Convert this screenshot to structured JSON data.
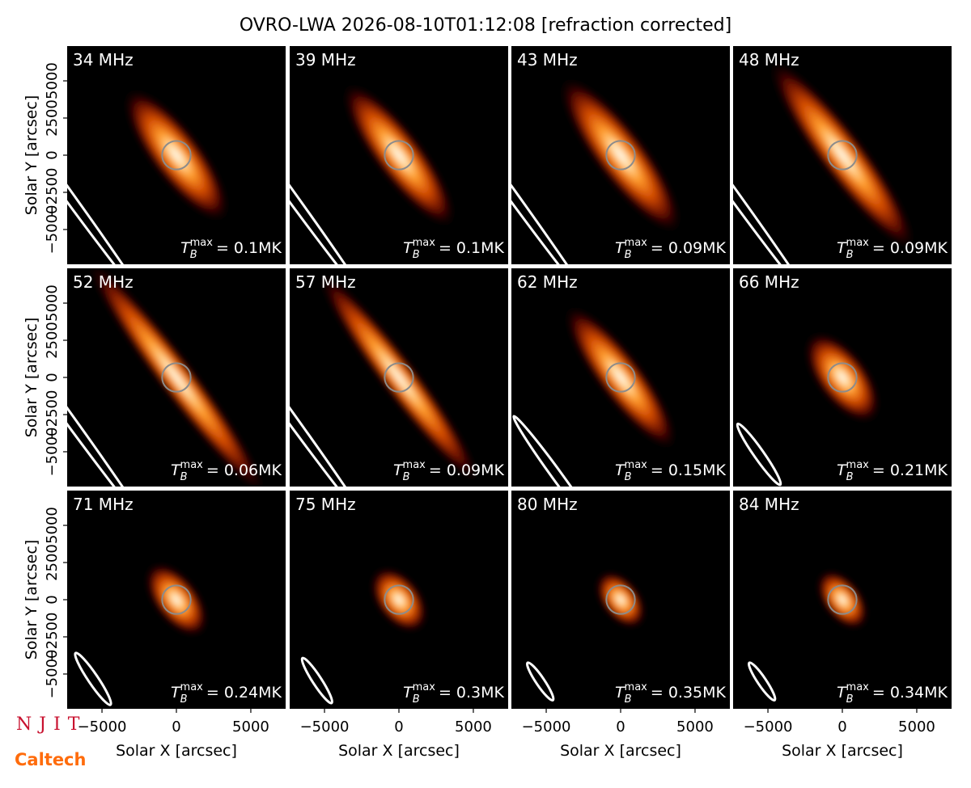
{
  "title": "OVRO-LWA 2026-08-10T01:12:08 [refraction corrected]",
  "logos": {
    "njit": "NJIT",
    "caltech": "Caltech"
  },
  "chart_data": [
    {
      "type": "image",
      "title": "34 MHz",
      "annotation": {
        "symbol": "T",
        "subscript": "B",
        "superscript": "max",
        "text": "= 0.1MK"
      },
      "xlim": [
        -7340,
        7340
      ],
      "ylim": [
        -7340,
        7340
      ],
      "disk_radius": 960,
      "yticks": [
        {
          "value": -5000,
          "label": "−5000"
        },
        {
          "value": -2500,
          "label": "−2500"
        },
        0,
        2500,
        5000
      ],
      "ylabel": "Solar Y [arcsec]",
      "source": {
        "x": 0,
        "y": 0,
        "major": 5500,
        "minor": 1700,
        "angle": -53
      },
      "beam": {
        "x": -9000,
        "y": -330,
        "major": 12000,
        "minor": 330,
        "angle": -54
      }
    },
    {
      "type": "image",
      "title": "39 MHz",
      "annotation": {
        "symbol": "T",
        "subscript": "B",
        "superscript": "max",
        "text": "= 0.1MK"
      },
      "xlim": [
        -7340,
        7340
      ],
      "ylim": [
        -7340,
        7340
      ],
      "disk_radius": 960,
      "source": {
        "x": 0,
        "y": 0,
        "major": 6000,
        "minor": 1600,
        "angle": -53
      },
      "beam": {
        "x": -9000,
        "y": -330,
        "major": 12000,
        "minor": 330,
        "angle": -54
      }
    },
    {
      "type": "image",
      "title": "43 MHz",
      "annotation": {
        "symbol": "T",
        "subscript": "B",
        "superscript": "max",
        "text": "= 0.09MK"
      },
      "xlim": [
        -7340,
        7340
      ],
      "ylim": [
        -7340,
        7340
      ],
      "disk_radius": 960,
      "source": {
        "x": 0,
        "y": 0,
        "major": 6500,
        "minor": 1700,
        "angle": -53
      },
      "beam": {
        "x": -9000,
        "y": -330,
        "major": 12000,
        "minor": 330,
        "angle": -54
      }
    },
    {
      "type": "image",
      "title": "48 MHz",
      "annotation": {
        "symbol": "T",
        "subscript": "B",
        "superscript": "max",
        "text": "= 0.09MK"
      },
      "xlim": [
        -7340,
        7340
      ],
      "ylim": [
        -7340,
        7340
      ],
      "disk_radius": 960,
      "source": {
        "x": 0,
        "y": 0,
        "major": 8000,
        "minor": 1500,
        "angle": -53
      },
      "beam": {
        "x": -9000,
        "y": -330,
        "major": 12000,
        "minor": 330,
        "angle": -54
      }
    },
    {
      "type": "image",
      "title": "52 MHz",
      "annotation": {
        "symbol": "T",
        "subscript": "B",
        "superscript": "max",
        "text": "= 0.06MK"
      },
      "xlim": [
        -7340,
        7340
      ],
      "ylim": [
        -7340,
        7340
      ],
      "disk_radius": 960,
      "yticks": [
        {
          "value": -5000,
          "label": "−5000"
        },
        {
          "value": -2500,
          "label": "−2500"
        },
        0,
        2500,
        5000
      ],
      "ylabel": "Solar Y [arcsec]",
      "source": {
        "x": 0,
        "y": 0,
        "major": 10000,
        "minor": 1200,
        "angle": -53
      },
      "beam": {
        "x": -9000,
        "y": -330,
        "major": 12000,
        "minor": 330,
        "angle": -54
      }
    },
    {
      "type": "image",
      "title": "57 MHz",
      "annotation": {
        "symbol": "T",
        "subscript": "B",
        "superscript": "max",
        "text": "= 0.09MK"
      },
      "xlim": [
        -7340,
        7340
      ],
      "ylim": [
        -7340,
        7340
      ],
      "disk_radius": 960,
      "source": {
        "x": 0,
        "y": 0,
        "major": 9000,
        "minor": 1200,
        "angle": -53
      },
      "beam": {
        "x": -9000,
        "y": -330,
        "major": 12000,
        "minor": 330,
        "angle": -54
      }
    },
    {
      "type": "image",
      "title": "62 MHz",
      "annotation": {
        "symbol": "T",
        "subscript": "B",
        "superscript": "max",
        "text": "= 0.15MK"
      },
      "xlim": [
        -7340,
        7340
      ],
      "ylim": [
        -7340,
        7340
      ],
      "disk_radius": 960,
      "source": {
        "x": 0,
        "y": 0,
        "major": 6000,
        "minor": 1500,
        "angle": -53
      },
      "beam": {
        "x": -4240,
        "y": -6655,
        "major": 5000,
        "minor": 330,
        "angle": -54
      }
    },
    {
      "type": "image",
      "title": "66 MHz",
      "annotation": {
        "symbol": "T",
        "subscript": "B",
        "superscript": "max",
        "text": "= 0.21MK"
      },
      "xlim": [
        -7340,
        7340
      ],
      "ylim": [
        -7340,
        7340
      ],
      "disk_radius": 960,
      "source": {
        "x": 0,
        "y": 0,
        "major": 3600,
        "minor": 1700,
        "angle": -53
      },
      "beam": {
        "x": -5600,
        "y": -5170,
        "major": 2500,
        "minor": 330,
        "angle": -55
      }
    },
    {
      "type": "image",
      "title": "71 MHz",
      "annotation": {
        "symbol": "T",
        "subscript": "B",
        "superscript": "max",
        "text": "= 0.24MK"
      },
      "xlim": [
        -7340,
        7340
      ],
      "ylim": [
        -7340,
        7340
      ],
      "disk_radius": 960,
      "xticks": [
        {
          "value": -5000,
          "label": "−5000"
        },
        0,
        5000
      ],
      "xlabel": "Solar X [arcsec]",
      "yticks": [
        {
          "value": -5000,
          "label": "−5000"
        },
        {
          "value": -2500,
          "label": "−2500"
        },
        0,
        2500,
        5000
      ],
      "ylabel": "Solar Y [arcsec]",
      "source": {
        "x": 0,
        "y": 0,
        "major": 2900,
        "minor": 1500,
        "angle": -53
      },
      "beam": {
        "x": -5600,
        "y": -5330,
        "major": 2100,
        "minor": 330,
        "angle": -56
      }
    },
    {
      "type": "image",
      "title": "75 MHz",
      "annotation": {
        "symbol": "T",
        "subscript": "B",
        "superscript": "max",
        "text": "= 0.3MK"
      },
      "xlim": [
        -7340,
        7340
      ],
      "ylim": [
        -7340,
        7340
      ],
      "disk_radius": 960,
      "xticks": [
        {
          "value": -5000,
          "label": "−5000"
        },
        0,
        5000
      ],
      "xlabel": "Solar X [arcsec]",
      "source": {
        "x": 0,
        "y": 0,
        "major": 2500,
        "minor": 1500,
        "angle": -53
      },
      "beam": {
        "x": -5500,
        "y": -5440,
        "major": 1800,
        "minor": 300,
        "angle": -57
      }
    },
    {
      "type": "image",
      "title": "80 MHz",
      "annotation": {
        "symbol": "T",
        "subscript": "B",
        "superscript": "max",
        "text": "= 0.35MK"
      },
      "xlim": [
        -7340,
        7340
      ],
      "ylim": [
        -7340,
        7340
      ],
      "disk_radius": 960,
      "xticks": [
        {
          "value": -5000,
          "label": "−5000"
        },
        0,
        5000
      ],
      "xlabel": "Solar X [arcsec]",
      "source": {
        "x": 0,
        "y": 0,
        "major": 2200,
        "minor": 1300,
        "angle": -53
      },
      "beam": {
        "x": -5400,
        "y": -5500,
        "major": 1520,
        "minor": 280,
        "angle": -56
      }
    },
    {
      "type": "image",
      "title": "84 MHz",
      "annotation": {
        "symbol": "T",
        "subscript": "B",
        "superscript": "max",
        "text": "= 0.34MK"
      },
      "xlim": [
        -7340,
        7340
      ],
      "ylim": [
        -7340,
        7340
      ],
      "disk_radius": 960,
      "xticks": [
        {
          "value": -5000,
          "label": "−5000"
        },
        0,
        5000
      ],
      "xlabel": "Solar X [arcsec]",
      "source": {
        "x": 0,
        "y": 0,
        "major": 2300,
        "minor": 1300,
        "angle": -53
      },
      "beam": {
        "x": -5400,
        "y": -5500,
        "major": 1520,
        "minor": 280,
        "angle": -56
      }
    }
  ]
}
